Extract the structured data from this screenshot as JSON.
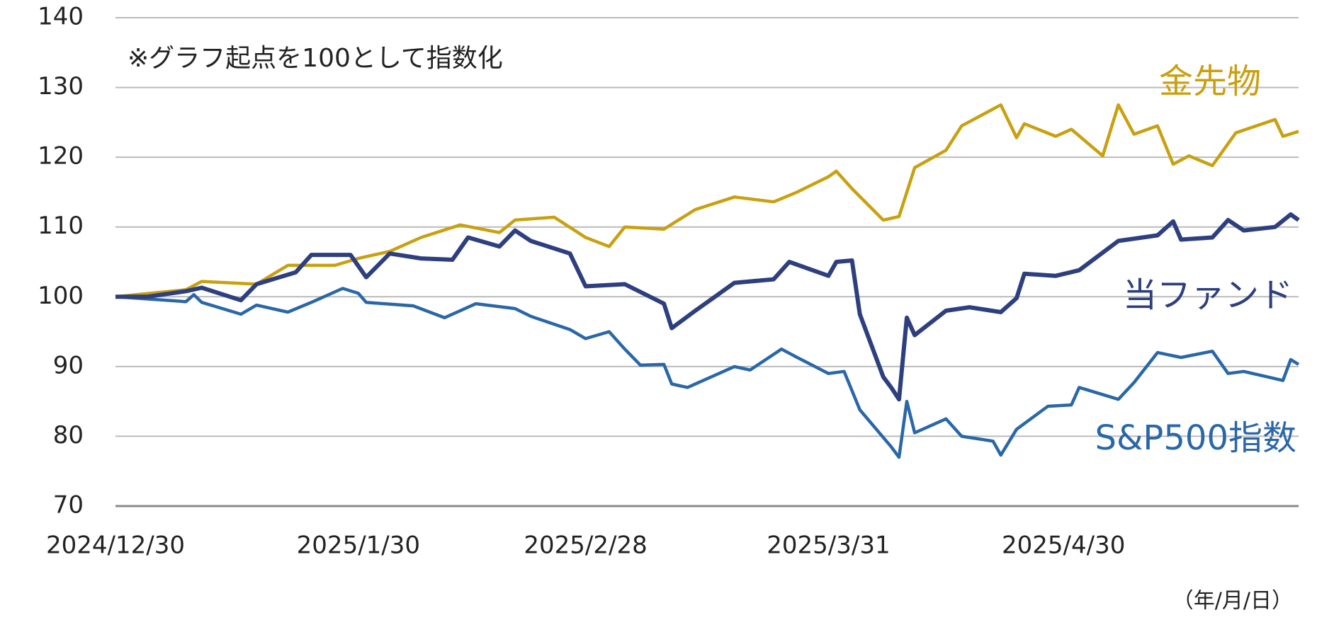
{
  "chart_data": {
    "type": "line",
    "annotation": "※グラフ起点を100として指数化",
    "x_label": "（年/月/日）",
    "xlim": [
      "2024/12/30",
      "2025/5/30"
    ],
    "xticks": [
      "2024/12/30",
      "2025/1/30",
      "2025/2/28",
      "2025/3/31",
      "2025/4/30"
    ],
    "ylim": [
      70,
      140
    ],
    "yticks": [
      70,
      80,
      90,
      100,
      110,
      120,
      130,
      140
    ],
    "grid": true,
    "series": [
      {
        "name": "金先物",
        "color": "#c9a00f",
        "x": [
          "2024/12/30",
          "2025/1/8",
          "2025/1/10",
          "2025/1/17",
          "2025/1/21",
          "2025/1/27",
          "2025/1/30",
          "2025/2/3",
          "2025/2/7",
          "2025/2/12",
          "2025/2/17",
          "2025/2/19",
          "2025/2/24",
          "2025/2/28",
          "2025/3/3",
          "2025/3/5",
          "2025/3/10",
          "2025/3/14",
          "2025/3/19",
          "2025/3/24",
          "2025/3/27",
          "2025/3/31",
          "2025/4/1",
          "2025/4/3",
          "2025/4/7",
          "2025/4/9",
          "2025/4/11",
          "2025/4/15",
          "2025/4/17",
          "2025/4/22",
          "2025/4/24",
          "2025/4/25",
          "2025/4/29",
          "2025/5/1",
          "2025/5/5",
          "2025/5/7",
          "2025/5/9",
          "2025/5/12",
          "2025/5/14",
          "2025/5/16",
          "2025/5/19",
          "2025/5/22",
          "2025/5/27",
          "2025/5/28",
          "2025/5/30"
        ],
        "values": [
          100,
          101,
          102.2,
          101.8,
          104.5,
          104.5,
          105.5,
          106.5,
          108.5,
          110.3,
          109.2,
          111,
          111.4,
          108.5,
          107.2,
          110,
          109.7,
          112.5,
          114.3,
          113.6,
          115,
          117.2,
          118,
          115.5,
          111,
          111.5,
          118.5,
          121,
          124.5,
          127.5,
          122.8,
          124.8,
          123,
          124,
          120.2,
          127.5,
          123.3,
          124.5,
          119,
          120.2,
          118.8,
          123.5,
          125.4,
          123,
          123.7
        ]
      },
      {
        "name": "当ファンド",
        "color": "#2e3f7f",
        "x": [
          "2024/12/30",
          "2025/1/3",
          "2025/1/8",
          "2025/1/10",
          "2025/1/15",
          "2025/1/17",
          "2025/1/22",
          "2025/1/24",
          "2025/1/29",
          "2025/1/31",
          "2025/2/3",
          "2025/2/7",
          "2025/2/11",
          "2025/2/13",
          "2025/2/17",
          "2025/2/19",
          "2025/2/21",
          "2025/2/26",
          "2025/2/28",
          "2025/3/5",
          "2025/3/10",
          "2025/3/11",
          "2025/3/14",
          "2025/3/19",
          "2025/3/24",
          "2025/3/26",
          "2025/3/31",
          "2025/4/1",
          "2025/4/3",
          "2025/4/4",
          "2025/4/7",
          "2025/4/8",
          "2025/4/9",
          "2025/4/10",
          "2025/4/11",
          "2025/4/15",
          "2025/4/18",
          "2025/4/22",
          "2025/4/24",
          "2025/4/25",
          "2025/4/29",
          "2025/5/2",
          "2025/5/7",
          "2025/5/12",
          "2025/5/14",
          "2025/5/15",
          "2025/5/19",
          "2025/5/21",
          "2025/5/23",
          "2025/5/27",
          "2025/5/29",
          "2025/5/30"
        ],
        "values": [
          100,
          100,
          100.8,
          101.3,
          99.5,
          101.8,
          103.5,
          106,
          106,
          102.8,
          106.2,
          105.5,
          105.3,
          108.5,
          107.2,
          109.5,
          108,
          106.2,
          101.5,
          101.8,
          99,
          95.5,
          98,
          102,
          102.5,
          105,
          103,
          105,
          105.2,
          97.5,
          88.5,
          87,
          85.3,
          97,
          94.5,
          98,
          98.5,
          97.8,
          99.8,
          103.3,
          103,
          103.8,
          108,
          108.8,
          110.8,
          108.2,
          108.5,
          111,
          109.5,
          110,
          111.8,
          111
        ]
      },
      {
        "name": "S&P500指数",
        "color": "#2a67a8",
        "x": [
          "2024/12/30",
          "2025/1/8",
          "2025/1/9",
          "2025/1/10",
          "2025/1/15",
          "2025/1/17",
          "2025/1/21",
          "2025/1/24",
          "2025/1/28",
          "2025/1/30",
          "2025/1/31",
          "2025/2/6",
          "2025/2/10",
          "2025/2/14",
          "2025/2/19",
          "2025/2/21",
          "2025/2/26",
          "2025/2/28",
          "2025/3/3",
          "2025/3/5",
          "2025/3/7",
          "2025/3/10",
          "2025/3/11",
          "2025/3/13",
          "2025/3/19",
          "2025/3/21",
          "2025/3/25",
          "2025/3/27",
          "2025/3/31",
          "2025/4/2",
          "2025/4/4",
          "2025/4/8",
          "2025/4/9",
          "2025/4/10",
          "2025/4/11",
          "2025/4/15",
          "2025/4/17",
          "2025/4/21",
          "2025/4/22",
          "2025/4/24",
          "2025/4/28",
          "2025/5/1",
          "2025/5/2",
          "2025/5/7",
          "2025/5/9",
          "2025/5/12",
          "2025/5/15",
          "2025/5/19",
          "2025/5/21",
          "2025/5/23",
          "2025/5/28",
          "2025/5/29",
          "2025/5/30"
        ],
        "values": [
          100,
          99.3,
          100.3,
          99.2,
          97.5,
          98.8,
          97.8,
          99.2,
          101.2,
          100.5,
          99.2,
          98.7,
          97,
          99,
          98.3,
          97.2,
          95.3,
          94,
          95,
          92.5,
          90.2,
          90.3,
          87.5,
          87,
          90,
          89.5,
          92.5,
          91.3,
          89,
          89.3,
          83.8,
          78.5,
          77,
          85,
          80.5,
          82.5,
          80,
          79.3,
          77.3,
          81,
          84.3,
          84.5,
          87,
          85.3,
          87.7,
          92,
          91.3,
          92.2,
          89,
          89.3,
          88,
          91,
          90.3
        ]
      }
    ]
  }
}
